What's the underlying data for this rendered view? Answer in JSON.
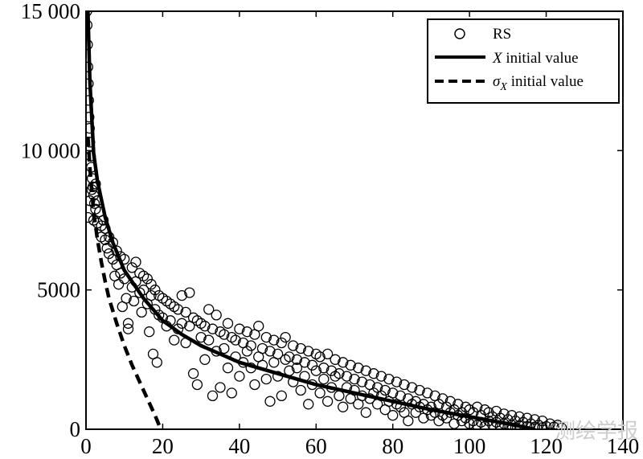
{
  "chart_data": {
    "type": "scatter",
    "title": "",
    "xlabel": "",
    "ylabel": "",
    "xlim": [
      0,
      140
    ],
    "ylim": [
      0,
      15000
    ],
    "x_ticks": [
      0,
      20,
      40,
      60,
      80,
      100,
      120,
      140
    ],
    "y_ticks": [
      0,
      5000,
      10000,
      15000
    ],
    "x_tick_labels": [
      "0",
      "20",
      "40",
      "60",
      "80",
      "100",
      "120",
      "140"
    ],
    "y_tick_labels": [
      "0",
      "5000",
      "10 000",
      "15 000"
    ],
    "grid": false,
    "legend_position": "top-right",
    "series": [
      {
        "name": "RS",
        "kind": "scatter",
        "marker": "open-circle",
        "color": "#000000",
        "points": [
          [
            0.2,
            15000
          ],
          [
            0.3,
            14500
          ],
          [
            0.4,
            13800
          ],
          [
            0.5,
            13000
          ],
          [
            0.6,
            12400
          ],
          [
            0.7,
            11800
          ],
          [
            0.8,
            11200
          ],
          [
            0.9,
            10800
          ],
          [
            1.0,
            10300
          ],
          [
            1.2,
            9800
          ],
          [
            1.4,
            9400
          ],
          [
            1.6,
            9000
          ],
          [
            1.8,
            8700
          ],
          [
            2.0,
            8400
          ],
          [
            2.2,
            8100
          ],
          [
            2.5,
            7900
          ],
          [
            0.5,
            7600
          ],
          [
            1.0,
            8200
          ],
          [
            1.5,
            8600
          ],
          [
            2.0,
            7500
          ],
          [
            2.5,
            8800
          ],
          [
            3.0,
            7400
          ],
          [
            3.0,
            8200
          ],
          [
            3.5,
            7800
          ],
          [
            4.0,
            7300
          ],
          [
            4.0,
            6900
          ],
          [
            4.5,
            7500
          ],
          [
            5.0,
            6800
          ],
          [
            5.0,
            7200
          ],
          [
            5.5,
            6500
          ],
          [
            6.0,
            6900
          ],
          [
            6.0,
            6300
          ],
          [
            7.0,
            6700
          ],
          [
            7.0,
            6100
          ],
          [
            7.5,
            5500
          ],
          [
            8.0,
            6400
          ],
          [
            8.0,
            5900
          ],
          [
            8.5,
            5200
          ],
          [
            9.0,
            6200
          ],
          [
            9.0,
            5600
          ],
          [
            9.5,
            4400
          ],
          [
            10.0,
            6100
          ],
          [
            10.0,
            5400
          ],
          [
            10.5,
            4700
          ],
          [
            11.0,
            3800
          ],
          [
            11.0,
            3600
          ],
          [
            12.0,
            5800
          ],
          [
            12.0,
            5100
          ],
          [
            12.5,
            4600
          ],
          [
            13.0,
            6000
          ],
          [
            13.0,
            5300
          ],
          [
            14.0,
            5600
          ],
          [
            14.0,
            4900
          ],
          [
            14.5,
            4200
          ],
          [
            15.0,
            5500
          ],
          [
            15.0,
            5000
          ],
          [
            16.0,
            5400
          ],
          [
            16.0,
            4500
          ],
          [
            16.5,
            3500
          ],
          [
            17.0,
            5200
          ],
          [
            17.0,
            4800
          ],
          [
            17.5,
            2700
          ],
          [
            18.0,
            5000
          ],
          [
            18.0,
            4300
          ],
          [
            18.5,
            2400
          ],
          [
            19.0,
            4800
          ],
          [
            19.0,
            4100
          ],
          [
            20.0,
            4700
          ],
          [
            20.0,
            4000
          ],
          [
            21.0,
            4600
          ],
          [
            21.0,
            3700
          ],
          [
            22.0,
            4500
          ],
          [
            22.0,
            3900
          ],
          [
            23.0,
            4400
          ],
          [
            23.0,
            3200
          ],
          [
            24.0,
            4300
          ],
          [
            24.0,
            3600
          ],
          [
            25.0,
            4800
          ],
          [
            25.0,
            3800
          ],
          [
            26.0,
            4200
          ],
          [
            26.0,
            3100
          ],
          [
            27.0,
            4900
          ],
          [
            27.0,
            3700
          ],
          [
            28.0,
            4000
          ],
          [
            28.0,
            2000
          ],
          [
            29.0,
            3900
          ],
          [
            29.0,
            1600
          ],
          [
            30.0,
            3800
          ],
          [
            30.0,
            3300
          ],
          [
            31.0,
            3700
          ],
          [
            31.0,
            2500
          ],
          [
            32.0,
            4300
          ],
          [
            32.0,
            3200
          ],
          [
            33.0,
            3600
          ],
          [
            33.0,
            1200
          ],
          [
            34.0,
            4100
          ],
          [
            34.0,
            2800
          ],
          [
            35.0,
            3500
          ],
          [
            35.0,
            1500
          ],
          [
            36.0,
            3400
          ],
          [
            36.0,
            2900
          ],
          [
            37.0,
            3800
          ],
          [
            37.0,
            2200
          ],
          [
            38.0,
            3300
          ],
          [
            38.0,
            1300
          ],
          [
            39.0,
            3200
          ],
          [
            39.0,
            2600
          ],
          [
            40.0,
            3600
          ],
          [
            40.0,
            1900
          ],
          [
            41.0,
            3100
          ],
          [
            41.0,
            2400
          ],
          [
            42.0,
            3500
          ],
          [
            42.0,
            2800
          ],
          [
            43.0,
            3000
          ],
          [
            43.0,
            2200
          ],
          [
            44.0,
            3400
          ],
          [
            44.0,
            1600
          ],
          [
            45.0,
            3700
          ],
          [
            45.0,
            2600
          ],
          [
            46.0,
            2900
          ],
          [
            46.0,
            2300
          ],
          [
            47.0,
            3300
          ],
          [
            47.0,
            1800
          ],
          [
            48.0,
            2800
          ],
          [
            48.0,
            1000
          ],
          [
            49.0,
            3200
          ],
          [
            49.0,
            2400
          ],
          [
            50.0,
            2700
          ],
          [
            50.0,
            1900
          ],
          [
            51.0,
            3100
          ],
          [
            51.0,
            1200
          ],
          [
            52.0,
            3300
          ],
          [
            52.0,
            2500
          ],
          [
            53.0,
            2600
          ],
          [
            53.0,
            2100
          ],
          [
            54.0,
            3000
          ],
          [
            54.0,
            1700
          ],
          [
            55.0,
            2500
          ],
          [
            55.0,
            2200
          ],
          [
            56.0,
            2900
          ],
          [
            56.0,
            1400
          ],
          [
            57.0,
            2400
          ],
          [
            57.0,
            1900
          ],
          [
            58.0,
            2800
          ],
          [
            58.0,
            900
          ],
          [
            59.0,
            2300
          ],
          [
            59.0,
            1600
          ],
          [
            60.0,
            2700
          ],
          [
            60.0,
            2100
          ],
          [
            61.0,
            2600
          ],
          [
            61.0,
            1300
          ],
          [
            62.0,
            2200
          ],
          [
            62.0,
            1800
          ],
          [
            63.0,
            2700
          ],
          [
            63.0,
            1000
          ],
          [
            64.0,
            2100
          ],
          [
            64.0,
            1500
          ],
          [
            65.0,
            2500
          ],
          [
            65.0,
            1900
          ],
          [
            66.0,
            2000
          ],
          [
            66.0,
            1200
          ],
          [
            67.0,
            2400
          ],
          [
            67.0,
            800
          ],
          [
            68.0,
            1900
          ],
          [
            68.0,
            1500
          ],
          [
            69.0,
            2300
          ],
          [
            69.0,
            1100
          ],
          [
            70.0,
            1800
          ],
          [
            70.0,
            1400
          ],
          [
            71.0,
            2200
          ],
          [
            71.0,
            900
          ],
          [
            72.0,
            1700
          ],
          [
            72.0,
            1200
          ],
          [
            73.0,
            2100
          ],
          [
            73.0,
            600
          ],
          [
            74.0,
            1600
          ],
          [
            74.0,
            1100
          ],
          [
            75.0,
            2000
          ],
          [
            75.0,
            1300
          ],
          [
            76.0,
            1500
          ],
          [
            76.0,
            900
          ],
          [
            77.0,
            1900
          ],
          [
            77.0,
            1200
          ],
          [
            78.0,
            1400
          ],
          [
            78.0,
            700
          ],
          [
            79.0,
            1800
          ],
          [
            79.0,
            1000
          ],
          [
            80.0,
            1300
          ],
          [
            80.0,
            500
          ],
          [
            81.0,
            1700
          ],
          [
            81.0,
            900
          ],
          [
            82.0,
            1200
          ],
          [
            82.0,
            800
          ],
          [
            83.0,
            1600
          ],
          [
            83.0,
            600
          ],
          [
            84.0,
            1100
          ],
          [
            84.0,
            300
          ],
          [
            85.0,
            1500
          ],
          [
            85.0,
            900
          ],
          [
            86.0,
            1000
          ],
          [
            86.0,
            600
          ],
          [
            87.0,
            1400
          ],
          [
            87.0,
            800
          ],
          [
            88.0,
            900
          ],
          [
            88.0,
            400
          ],
          [
            89.0,
            1300
          ],
          [
            89.0,
            700
          ],
          [
            90.0,
            800
          ],
          [
            90.0,
            500
          ],
          [
            91.0,
            1200
          ],
          [
            91.0,
            600
          ],
          [
            92.0,
            900
          ],
          [
            92.0,
            300
          ],
          [
            93.0,
            1100
          ],
          [
            93.0,
            500
          ],
          [
            94.0,
            800
          ],
          [
            94.0,
            400
          ],
          [
            95.0,
            1000
          ],
          [
            95.0,
            600
          ],
          [
            96.0,
            700
          ],
          [
            96.0,
            200
          ],
          [
            97.0,
            900
          ],
          [
            97.0,
            500
          ],
          [
            98.0,
            600
          ],
          [
            98.0,
            300
          ],
          [
            99.0,
            800
          ],
          [
            99.0,
            400
          ],
          [
            100.0,
            700
          ],
          [
            100.0,
            200
          ],
          [
            101.0,
            600
          ],
          [
            101.0,
            300
          ],
          [
            102.0,
            800
          ],
          [
            102.0,
            150
          ],
          [
            103.0,
            500
          ],
          [
            103.0,
            250
          ],
          [
            104.0,
            700
          ],
          [
            104.0,
            100
          ],
          [
            105.0,
            600
          ],
          [
            105.0,
            300
          ],
          [
            106.0,
            450
          ],
          [
            106.0,
            150
          ],
          [
            107.0,
            650
          ],
          [
            107.0,
            250
          ],
          [
            108.0,
            400
          ],
          [
            108.0,
            100
          ],
          [
            109.0,
            550
          ],
          [
            109.0,
            200
          ],
          [
            110.0,
            350
          ],
          [
            110.0,
            80
          ],
          [
            111.0,
            500
          ],
          [
            111.0,
            150
          ],
          [
            112.0,
            300
          ],
          [
            112.0,
            60
          ],
          [
            113.0,
            450
          ],
          [
            113.0,
            120
          ],
          [
            114.0,
            250
          ],
          [
            115.0,
            400
          ],
          [
            115.0,
            100
          ],
          [
            116.0,
            200
          ],
          [
            117.0,
            350
          ],
          [
            117.0,
            80
          ],
          [
            118.0,
            150
          ],
          [
            119.0,
            300
          ],
          [
            119.0,
            60
          ],
          [
            120.0,
            100
          ],
          [
            121.0,
            200
          ],
          [
            122.0,
            80
          ],
          [
            123.0,
            150
          ],
          [
            124.0,
            50
          ]
        ]
      },
      {
        "name": "X initial value",
        "kind": "line",
        "style": "solid",
        "color": "#000000",
        "points": [
          [
            0.5,
            15000
          ],
          [
            1,
            12500
          ],
          [
            2,
            9900
          ],
          [
            3,
            8900
          ],
          [
            5,
            7600
          ],
          [
            7,
            6700
          ],
          [
            10,
            5700
          ],
          [
            15,
            4700
          ],
          [
            20,
            3900
          ],
          [
            25,
            3400
          ],
          [
            30,
            3000
          ],
          [
            40,
            2400
          ],
          [
            50,
            2000
          ],
          [
            60,
            1600
          ],
          [
            70,
            1300
          ],
          [
            80,
            1000
          ],
          [
            90,
            700
          ],
          [
            100,
            450
          ],
          [
            110,
            200
          ],
          [
            117,
            0
          ]
        ]
      },
      {
        "name": "σX initial value",
        "kind": "line",
        "style": "dashed",
        "color": "#000000",
        "points": [
          [
            0.5,
            10500
          ],
          [
            1,
            9400
          ],
          [
            2,
            7800
          ],
          [
            3,
            6800
          ],
          [
            4,
            6000
          ],
          [
            5,
            5300
          ],
          [
            6,
            4700
          ],
          [
            8,
            3800
          ],
          [
            10,
            3000
          ],
          [
            12,
            2300
          ],
          [
            14,
            1700
          ],
          [
            16,
            1100
          ],
          [
            18,
            500
          ],
          [
            19.5,
            0
          ]
        ]
      }
    ]
  },
  "legend": {
    "entries": [
      {
        "label_text": "RS"
      },
      {
        "label_italic": "X",
        "label_text": " initial value"
      },
      {
        "label_italic": "σ",
        "label_sub": "X",
        "label_text": " initial value"
      }
    ]
  },
  "watermark": "测绘学报"
}
